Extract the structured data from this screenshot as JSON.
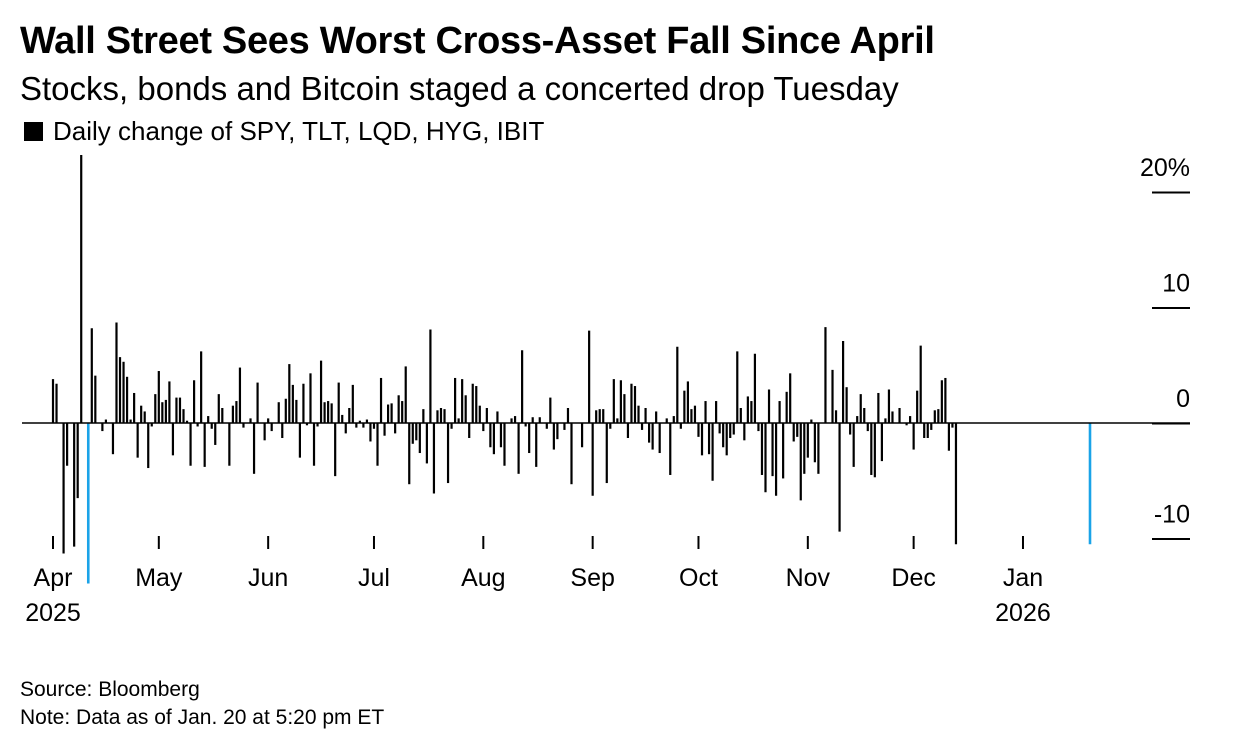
{
  "title": "Wall Street Sees Worst Cross-Asset Fall Since April",
  "subtitle": "Stocks, bonds and Bitcoin staged a concerted drop Tuesday",
  "legend": {
    "label": "Daily change of SPY, TLT, LQD, HYG, IBIT"
  },
  "source": "Source: Bloomberg",
  "note": "Note: Data as of Jan. 20 at 5:20 pm ET",
  "colors": {
    "bar": "#000000",
    "highlight": "#1aa3e8",
    "axis": "#000000"
  },
  "chart_data": {
    "type": "bar",
    "title": "Wall Street Sees Worst Cross-Asset Fall Since April",
    "ylabel": "Daily change of SPY, TLT, LQD, HYG, IBIT",
    "ylim": [
      -12.5,
      23
    ],
    "y_ticks": [
      {
        "value": 20,
        "label": "20%"
      },
      {
        "value": 10,
        "label": "10"
      },
      {
        "value": 0,
        "label": "0"
      },
      {
        "value": -10,
        "label": "-10"
      }
    ],
    "x_ticks": [
      {
        "label": "Apr",
        "year": "2025",
        "day": 0
      },
      {
        "label": "May",
        "day": 30
      },
      {
        "label": "Jun",
        "day": 61
      },
      {
        "label": "Jul",
        "day": 91
      },
      {
        "label": "Aug",
        "day": 122
      },
      {
        "label": "Sep",
        "day": 153
      },
      {
        "label": "Oct",
        "day": 183
      },
      {
        "label": "Nov",
        "day": 214
      },
      {
        "label": "Dec",
        "day": 244
      },
      {
        "label": "Jan",
        "year": "2026",
        "day": 275
      }
    ],
    "highlight_days": [
      10,
      294
    ],
    "bars": [
      {
        "day": 0,
        "value": 3.8
      },
      {
        "day": 1,
        "value": 3.4
      },
      {
        "day": 3,
        "value": -11.3
      },
      {
        "day": 4,
        "value": -3.7
      },
      {
        "day": 6,
        "value": -10.7
      },
      {
        "day": 7,
        "value": -6.5
      },
      {
        "day": 8,
        "value": 23.2
      },
      {
        "day": 10,
        "value": -13.9
      },
      {
        "day": 11,
        "value": 8.2
      },
      {
        "day": 12,
        "value": 4.1
      },
      {
        "day": 14,
        "value": -0.7
      },
      {
        "day": 15,
        "value": 0.3
      },
      {
        "day": 17,
        "value": -2.7
      },
      {
        "day": 18,
        "value": 8.7
      },
      {
        "day": 19,
        "value": 5.7
      },
      {
        "day": 20,
        "value": 5.3
      },
      {
        "day": 21,
        "value": 4.0
      },
      {
        "day": 22,
        "value": 0.3
      },
      {
        "day": 23,
        "value": 2.6
      },
      {
        "day": 24,
        "value": -3.0
      },
      {
        "day": 25,
        "value": 1.5
      },
      {
        "day": 26,
        "value": 1.0
      },
      {
        "day": 27,
        "value": -3.9
      },
      {
        "day": 28,
        "value": -0.3
      },
      {
        "day": 29,
        "value": 2.5
      },
      {
        "day": 30,
        "value": 4.5
      },
      {
        "day": 31,
        "value": 1.8
      },
      {
        "day": 32,
        "value": 2.0
      },
      {
        "day": 33,
        "value": 3.6
      },
      {
        "day": 34,
        "value": -2.8
      },
      {
        "day": 35,
        "value": 2.2
      },
      {
        "day": 36,
        "value": 2.2
      },
      {
        "day": 37,
        "value": 1.2
      },
      {
        "day": 38,
        "value": 0.2
      },
      {
        "day": 39,
        "value": -3.7
      },
      {
        "day": 40,
        "value": 3.7
      },
      {
        "day": 41,
        "value": -0.3
      },
      {
        "day": 42,
        "value": 6.2
      },
      {
        "day": 43,
        "value": -3.8
      },
      {
        "day": 44,
        "value": 0.6
      },
      {
        "day": 45,
        "value": -0.5
      },
      {
        "day": 46,
        "value": -1.9
      },
      {
        "day": 47,
        "value": 2.5
      },
      {
        "day": 48,
        "value": 1.3
      },
      {
        "day": 50,
        "value": -3.7
      },
      {
        "day": 51,
        "value": 1.5
      },
      {
        "day": 52,
        "value": 1.9
      },
      {
        "day": 53,
        "value": 4.8
      },
      {
        "day": 54,
        "value": -0.4
      },
      {
        "day": 56,
        "value": 0.4
      },
      {
        "day": 57,
        "value": -4.4
      },
      {
        "day": 58,
        "value": 3.5
      },
      {
        "day": 60,
        "value": -1.5
      },
      {
        "day": 61,
        "value": 0.4
      },
      {
        "day": 62,
        "value": -0.7
      },
      {
        "day": 64,
        "value": 1.8
      },
      {
        "day": 65,
        "value": -1.3
      },
      {
        "day": 66,
        "value": 2.1
      },
      {
        "day": 67,
        "value": 5.1
      },
      {
        "day": 68,
        "value": 3.3
      },
      {
        "day": 69,
        "value": 2.0
      },
      {
        "day": 70,
        "value": -3.0
      },
      {
        "day": 71,
        "value": 3.4
      },
      {
        "day": 72,
        "value": -0.2
      },
      {
        "day": 73,
        "value": 4.3
      },
      {
        "day": 74,
        "value": -3.7
      },
      {
        "day": 75,
        "value": -0.3
      },
      {
        "day": 76,
        "value": 5.4
      },
      {
        "day": 77,
        "value": 1.8
      },
      {
        "day": 78,
        "value": 1.9
      },
      {
        "day": 79,
        "value": 1.7
      },
      {
        "day": 80,
        "value": -4.6
      },
      {
        "day": 81,
        "value": 3.5
      },
      {
        "day": 82,
        "value": 0.7
      },
      {
        "day": 83,
        "value": -0.9
      },
      {
        "day": 84,
        "value": 1.3
      },
      {
        "day": 85,
        "value": 3.3
      },
      {
        "day": 86,
        "value": -0.4
      },
      {
        "day": 87,
        "value": 0.2
      },
      {
        "day": 88,
        "value": -0.4
      },
      {
        "day": 89,
        "value": 0.3
      },
      {
        "day": 90,
        "value": -1.6
      },
      {
        "day": 91,
        "value": -0.5
      },
      {
        "day": 92,
        "value": -3.7
      },
      {
        "day": 93,
        "value": 3.9
      },
      {
        "day": 94,
        "value": -1.1
      },
      {
        "day": 95,
        "value": 1.6
      },
      {
        "day": 96,
        "value": 1.7
      },
      {
        "day": 97,
        "value": -0.9
      },
      {
        "day": 98,
        "value": 2.4
      },
      {
        "day": 99,
        "value": 1.9
      },
      {
        "day": 100,
        "value": 4.9
      },
      {
        "day": 101,
        "value": -5.3
      },
      {
        "day": 102,
        "value": -1.8
      },
      {
        "day": 103,
        "value": -1.5
      },
      {
        "day": 104,
        "value": -2.6
      },
      {
        "day": 105,
        "value": 1.2
      },
      {
        "day": 106,
        "value": -3.5
      },
      {
        "day": 107,
        "value": 8.1
      },
      {
        "day": 108,
        "value": -6.1
      },
      {
        "day": 109,
        "value": 1.1
      },
      {
        "day": 110,
        "value": 1.3
      },
      {
        "day": 111,
        "value": 1.2
      },
      {
        "day": 112,
        "value": -5.2
      },
      {
        "day": 113,
        "value": -0.5
      },
      {
        "day": 114,
        "value": 3.9
      },
      {
        "day": 115,
        "value": 0.4
      },
      {
        "day": 116,
        "value": 3.8
      },
      {
        "day": 117,
        "value": 2.4
      },
      {
        "day": 118,
        "value": -1.3
      },
      {
        "day": 119,
        "value": 3.4
      },
      {
        "day": 120,
        "value": 3.2
      },
      {
        "day": 121,
        "value": 1.5
      },
      {
        "day": 122,
        "value": -0.7
      },
      {
        "day": 123,
        "value": 1.3
      },
      {
        "day": 124,
        "value": -2.1
      },
      {
        "day": 125,
        "value": -2.7
      },
      {
        "day": 126,
        "value": 1.0
      },
      {
        "day": 127,
        "value": -2.1
      },
      {
        "day": 128,
        "value": -3.7
      },
      {
        "day": 130,
        "value": 0.4
      },
      {
        "day": 131,
        "value": 0.6
      },
      {
        "day": 132,
        "value": -4.4
      },
      {
        "day": 133,
        "value": 6.3
      },
      {
        "day": 134,
        "value": -0.3
      },
      {
        "day": 135,
        "value": -2.6
      },
      {
        "day": 136,
        "value": 0.5
      },
      {
        "day": 137,
        "value": -3.8
      }
    ],
    "bars_dense_note": "",
    "bars2": [
      {
        "day": 138,
        "value": 0.5
      },
      {
        "day": 140,
        "value": -0.5
      },
      {
        "day": 141,
        "value": 2.2
      },
      {
        "day": 142,
        "value": -2.3
      },
      {
        "day": 143,
        "value": -1.4
      },
      {
        "day": 145,
        "value": -0.6
      },
      {
        "day": 146,
        "value": 1.3
      },
      {
        "day": 147,
        "value": -5.3
      },
      {
        "day": 150,
        "value": -2.1
      },
      {
        "day": 152,
        "value": 8.0
      },
      {
        "day": 153,
        "value": -6.3
      },
      {
        "day": 154,
        "value": 1.1
      },
      {
        "day": 155,
        "value": 1.2
      },
      {
        "day": 156,
        "value": 1.2
      },
      {
        "day": 157,
        "value": -5.2
      },
      {
        "day": 158,
        "value": -0.5
      },
      {
        "day": 159,
        "value": 3.8
      },
      {
        "day": 160,
        "value": 0.4
      },
      {
        "day": 161,
        "value": 3.7
      },
      {
        "day": 162,
        "value": 2.5
      },
      {
        "day": 163,
        "value": -1.3
      },
      {
        "day": 164,
        "value": 3.4
      },
      {
        "day": 165,
        "value": 3.2
      },
      {
        "day": 166,
        "value": 1.5
      },
      {
        "day": 167,
        "value": -0.6
      },
      {
        "day": 168,
        "value": 1.3
      },
      {
        "day": 169,
        "value": -1.7
      },
      {
        "day": 170,
        "value": -2.3
      },
      {
        "day": 171,
        "value": 1.0
      },
      {
        "day": 172,
        "value": -2.6
      },
      {
        "day": 174,
        "value": 0.4
      },
      {
        "day": 175,
        "value": -4.5
      },
      {
        "day": 176,
        "value": 0.6
      },
      {
        "day": 177,
        "value": 6.6
      },
      {
        "day": 178,
        "value": -0.5
      },
      {
        "day": 179,
        "value": 2.8
      },
      {
        "day": 180,
        "value": 3.6
      },
      {
        "day": 181,
        "value": 1.2
      },
      {
        "day": 182,
        "value": 1.5
      },
      {
        "day": 183,
        "value": -1.2
      },
      {
        "day": 184,
        "value": -2.8
      },
      {
        "day": 185,
        "value": 1.9
      },
      {
        "day": 186,
        "value": -2.7
      },
      {
        "day": 187,
        "value": -5.0
      },
      {
        "day": 188,
        "value": 1.9
      },
      {
        "day": 189,
        "value": -0.9
      },
      {
        "day": 190,
        "value": -2.1
      },
      {
        "day": 191,
        "value": -2.8
      },
      {
        "day": 192,
        "value": -1.3
      },
      {
        "day": 193,
        "value": -1.0
      },
      {
        "day": 194,
        "value": 6.2
      },
      {
        "day": 195,
        "value": 1.3
      },
      {
        "day": 196,
        "value": -1.5
      },
      {
        "day": 197,
        "value": 2.3
      },
      {
        "day": 198,
        "value": 1.9
      },
      {
        "day": 199,
        "value": 6.0
      },
      {
        "day": 200,
        "value": -0.7
      },
      {
        "day": 201,
        "value": -4.5
      },
      {
        "day": 202,
        "value": -6.0
      },
      {
        "day": 203,
        "value": 2.9
      },
      {
        "day": 204,
        "value": -4.6
      },
      {
        "day": 205,
        "value": -6.3
      },
      {
        "day": 206,
        "value": 1.9
      },
      {
        "day": 207,
        "value": -4.8
      },
      {
        "day": 208,
        "value": 2.7
      },
      {
        "day": 209,
        "value": 4.3
      },
      {
        "day": 210,
        "value": -1.6
      },
      {
        "day": 211,
        "value": -1.2
      },
      {
        "day": 212,
        "value": -6.7
      },
      {
        "day": 213,
        "value": -4.4
      },
      {
        "day": 214,
        "value": -3.0
      },
      {
        "day": 215,
        "value": 0.3
      },
      {
        "day": 216,
        "value": -3.4
      },
      {
        "day": 217,
        "value": -4.4
      },
      {
        "day": 219,
        "value": 8.3
      },
      {
        "day": 221,
        "value": 4.6
      },
      {
        "day": 222,
        "value": 1.1
      },
      {
        "day": 223,
        "value": -9.4
      },
      {
        "day": 224,
        "value": 7.1
      },
      {
        "day": 225,
        "value": 3.1
      },
      {
        "day": 226,
        "value": -1.0
      },
      {
        "day": 227,
        "value": -3.8
      },
      {
        "day": 228,
        "value": 0.6
      },
      {
        "day": 229,
        "value": 2.5
      },
      {
        "day": 230,
        "value": 1.3
      },
      {
        "day": 231,
        "value": -0.7
      },
      {
        "day": 232,
        "value": -4.5
      },
      {
        "day": 233,
        "value": -4.7
      },
      {
        "day": 234,
        "value": 2.6
      },
      {
        "day": 235,
        "value": -3.3
      },
      {
        "day": 236,
        "value": 0.4
      },
      {
        "day": 237,
        "value": 2.9
      },
      {
        "day": 238,
        "value": 1.0
      },
      {
        "day": 240,
        "value": 1.3
      },
      {
        "day": 242,
        "value": -0.2
      },
      {
        "day": 243,
        "value": 0.6
      },
      {
        "day": 244,
        "value": -2.3
      },
      {
        "day": 245,
        "value": 2.8
      },
      {
        "day": 246,
        "value": 6.7
      },
      {
        "day": 247,
        "value": -1.3
      },
      {
        "day": 248,
        "value": -1.3
      },
      {
        "day": 249,
        "value": -0.6
      },
      {
        "day": 250,
        "value": 1.1
      },
      {
        "day": 251,
        "value": 1.2
      },
      {
        "day": 252,
        "value": 3.7
      },
      {
        "day": 253,
        "value": 3.9
      },
      {
        "day": 254,
        "value": -2.4
      },
      {
        "day": 255,
        "value": -0.4
      },
      {
        "day": 256,
        "value": -10.5
      }
    ]
  }
}
